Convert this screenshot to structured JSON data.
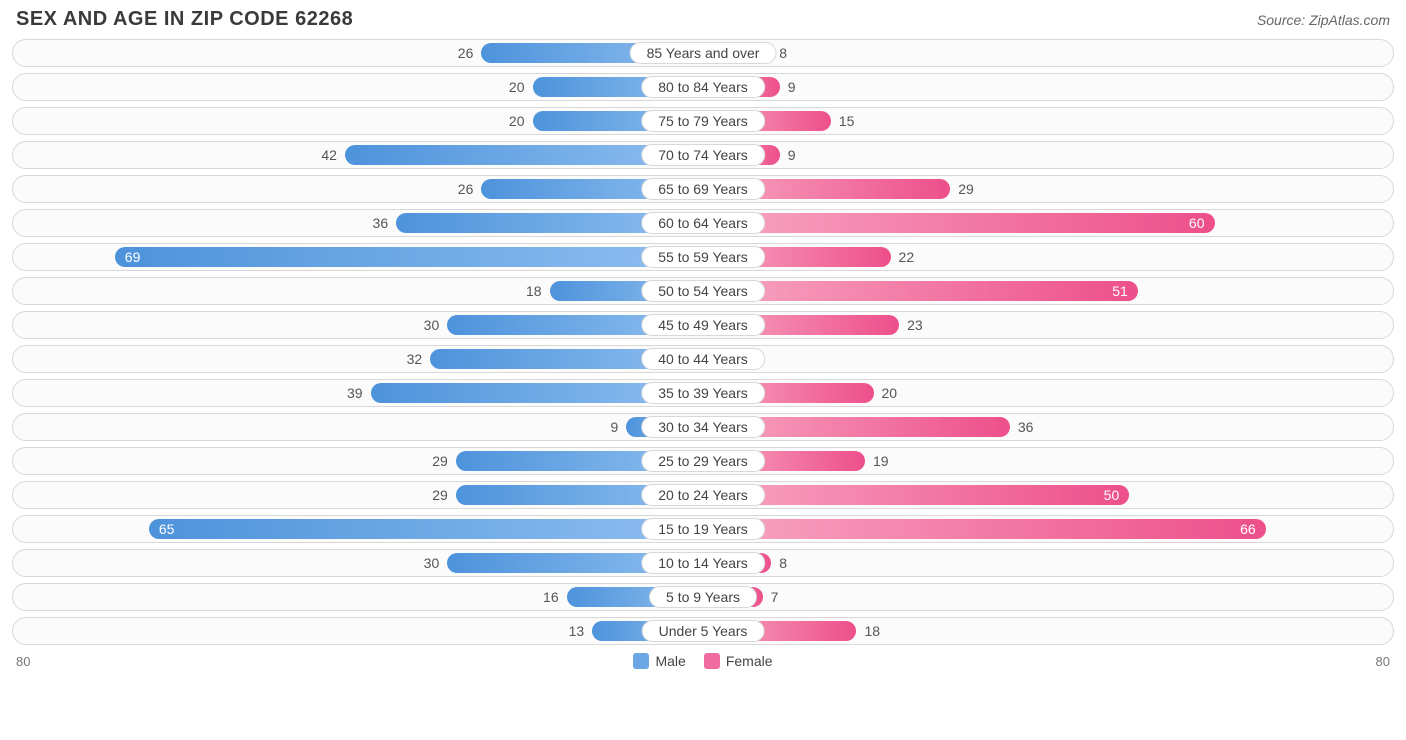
{
  "title": "SEX AND AGE IN ZIP CODE 62268",
  "source": "Source: ZipAtlas.com",
  "chart": {
    "type": "population-pyramid",
    "axis_max": 80,
    "axis_left_label": "80",
    "axis_right_label": "80",
    "inside_label_threshold": 45,
    "colors": {
      "male_from": "#8fbef0",
      "male_to": "#4d93db",
      "female_from": "#f8a6c2",
      "female_to": "#ed4f8a",
      "row_border": "#d8d8d8",
      "row_bg": "#fbfbfb",
      "text_inside": "#ffffff",
      "text_outside": "#555555",
      "background": "#ffffff"
    },
    "legend": {
      "male": {
        "label": "Male",
        "swatch": "#6aa7e4"
      },
      "female": {
        "label": "Female",
        "swatch": "#f06ca0"
      }
    },
    "rows": [
      {
        "label": "85 Years and over",
        "male": 26,
        "female": 8
      },
      {
        "label": "80 to 84 Years",
        "male": 20,
        "female": 9
      },
      {
        "label": "75 to 79 Years",
        "male": 20,
        "female": 15
      },
      {
        "label": "70 to 74 Years",
        "male": 42,
        "female": 9
      },
      {
        "label": "65 to 69 Years",
        "male": 26,
        "female": 29
      },
      {
        "label": "60 to 64 Years",
        "male": 36,
        "female": 60
      },
      {
        "label": "55 to 59 Years",
        "male": 69,
        "female": 22
      },
      {
        "label": "50 to 54 Years",
        "male": 18,
        "female": 51
      },
      {
        "label": "45 to 49 Years",
        "male": 30,
        "female": 23
      },
      {
        "label": "40 to 44 Years",
        "male": 32,
        "female": 2
      },
      {
        "label": "35 to 39 Years",
        "male": 39,
        "female": 20
      },
      {
        "label": "30 to 34 Years",
        "male": 9,
        "female": 36
      },
      {
        "label": "25 to 29 Years",
        "male": 29,
        "female": 19
      },
      {
        "label": "20 to 24 Years",
        "male": 29,
        "female": 50
      },
      {
        "label": "15 to 19 Years",
        "male": 65,
        "female": 66
      },
      {
        "label": "10 to 14 Years",
        "male": 30,
        "female": 8
      },
      {
        "label": "5 to 9 Years",
        "male": 16,
        "female": 7
      },
      {
        "label": "Under 5 Years",
        "male": 13,
        "female": 18
      }
    ]
  }
}
